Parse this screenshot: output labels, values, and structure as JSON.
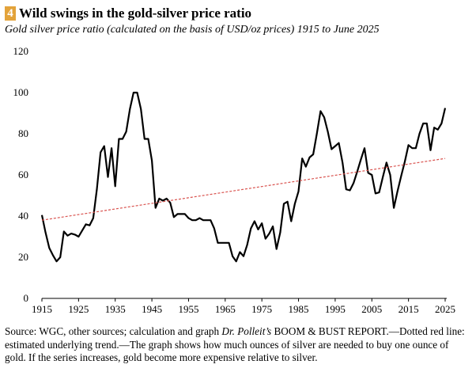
{
  "header": {
    "badge": "4",
    "title": "Wild swings in the gold-silver price ratio",
    "subtitle": "Gold silver price ratio (calculated on the basis of USD/oz prices) 1915 to June 2025"
  },
  "footer": {
    "part1": "Source: WGC, other sources; calculation and graph ",
    "part2": "Dr. Polleit’s",
    "part3": " BOOM & BUST REPORT.—Dotted red line: estimated underlying trend.—The graph shows how much ounces of silver are needed to buy one ounce of gold. If the series increases, gold become more expensive relative to silver."
  },
  "chart_data": {
    "type": "line",
    "title": "Gold silver price ratio (calculated on the basis of USD/oz prices) 1915 to June 2025",
    "xlabel": "",
    "ylabel": "",
    "xlim": [
      1915,
      2025
    ],
    "ylim": [
      0,
      120
    ],
    "x_ticks": [
      1915,
      1925,
      1935,
      1945,
      1955,
      1965,
      1975,
      1985,
      1995,
      2005,
      2015,
      2025
    ],
    "y_ticks": [
      0,
      20,
      40,
      60,
      80,
      100,
      120
    ],
    "grid": false,
    "series": [
      {
        "color": "#000000",
        "style": "solid",
        "x": [
          1915,
          1916,
          1917,
          1918,
          1919,
          1920,
          1921,
          1922,
          1923,
          1924,
          1925,
          1926,
          1927,
          1928,
          1929,
          1930,
          1931,
          1932,
          1933,
          1934,
          1935,
          1936,
          1937,
          1938,
          1939,
          1940,
          1941,
          1942,
          1943,
          1944,
          1945,
          1946,
          1947,
          1948,
          1949,
          1950,
          1951,
          1952,
          1953,
          1954,
          1955,
          1956,
          1957,
          1958,
          1959,
          1960,
          1961,
          1962,
          1963,
          1964,
          1965,
          1966,
          1967,
          1968,
          1969,
          1970,
          1971,
          1972,
          1973,
          1974,
          1975,
          1976,
          1977,
          1978,
          1979,
          1980,
          1981,
          1982,
          1983,
          1984,
          1985,
          1986,
          1987,
          1988,
          1989,
          1990,
          1991,
          1992,
          1993,
          1994,
          1995,
          1996,
          1997,
          1998,
          1999,
          2000,
          2001,
          2002,
          2003,
          2004,
          2005,
          2006,
          2007,
          2008,
          2009,
          2010,
          2011,
          2012,
          2013,
          2014,
          2015,
          2016,
          2017,
          2018,
          2019,
          2020,
          2021,
          2022,
          2023,
          2024,
          2025
        ],
        "values": [
          40.5,
          32,
          24.5,
          21,
          18,
          20,
          32.5,
          30.5,
          31.5,
          31,
          30,
          33,
          36,
          35.5,
          39,
          53,
          71,
          74,
          59,
          73,
          54.5,
          77.5,
          77.5,
          81,
          92,
          100,
          100,
          92,
          77.5,
          77.5,
          67,
          44,
          48.5,
          47.5,
          48.5,
          46.5,
          39.5,
          41,
          41,
          41,
          39,
          38,
          38,
          39,
          38,
          38,
          38,
          34,
          27,
          27,
          27,
          27,
          20.5,
          18,
          22.5,
          20.5,
          26,
          34,
          37.5,
          33.5,
          36.5,
          29,
          31.5,
          35,
          24,
          32,
          46,
          47,
          37.5,
          46,
          52,
          68,
          64,
          68.5,
          70,
          80,
          91,
          88,
          81,
          72.5,
          74,
          75.5,
          66,
          53,
          52.5,
          56,
          61.5,
          67.5,
          73,
          61,
          60,
          51,
          51.5,
          59,
          66,
          60,
          44,
          52,
          59.5,
          66.5,
          74.5,
          73,
          73,
          80,
          85,
          85,
          72,
          83,
          82,
          85,
          92.5
        ]
      },
      {
        "name": "estimated underlying trend",
        "color": "#d9534f",
        "style": "dotted",
        "x": [
          1915,
          2025
        ],
        "values": [
          38,
          68
        ]
      }
    ]
  }
}
